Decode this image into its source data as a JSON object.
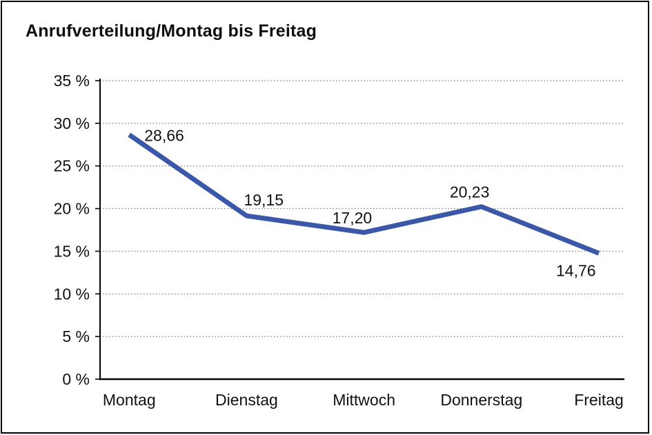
{
  "chart_data": {
    "type": "line",
    "title": "Anrufverteilung/Montag bis Freitag",
    "categories": [
      "Montag",
      "Dienstag",
      "Mittwoch",
      "Donnerstag",
      "Freitag"
    ],
    "series": [
      {
        "name": "Anrufverteilung",
        "values": [
          28.66,
          19.15,
          17.2,
          20.23,
          14.76
        ],
        "color": "#3A57A8"
      }
    ],
    "value_labels": [
      "28,66",
      "19,15",
      "17,20",
      "20,23",
      "14,76"
    ],
    "xlabel": "",
    "ylabel": "",
    "ylim": [
      0,
      35
    ],
    "y_tick_step": 5,
    "y_tick_labels": [
      "0 %",
      "5 %",
      "10 %",
      "15 %",
      "20 %",
      "25 %",
      "30 %",
      "35 %"
    ],
    "grid": "horizontal-dotted",
    "legend": "none",
    "colors": {
      "series_blue": "#3A57A8",
      "gridline_gray": "#7d7d7d",
      "axis_black": "#000000",
      "text_black": "#111111"
    }
  }
}
